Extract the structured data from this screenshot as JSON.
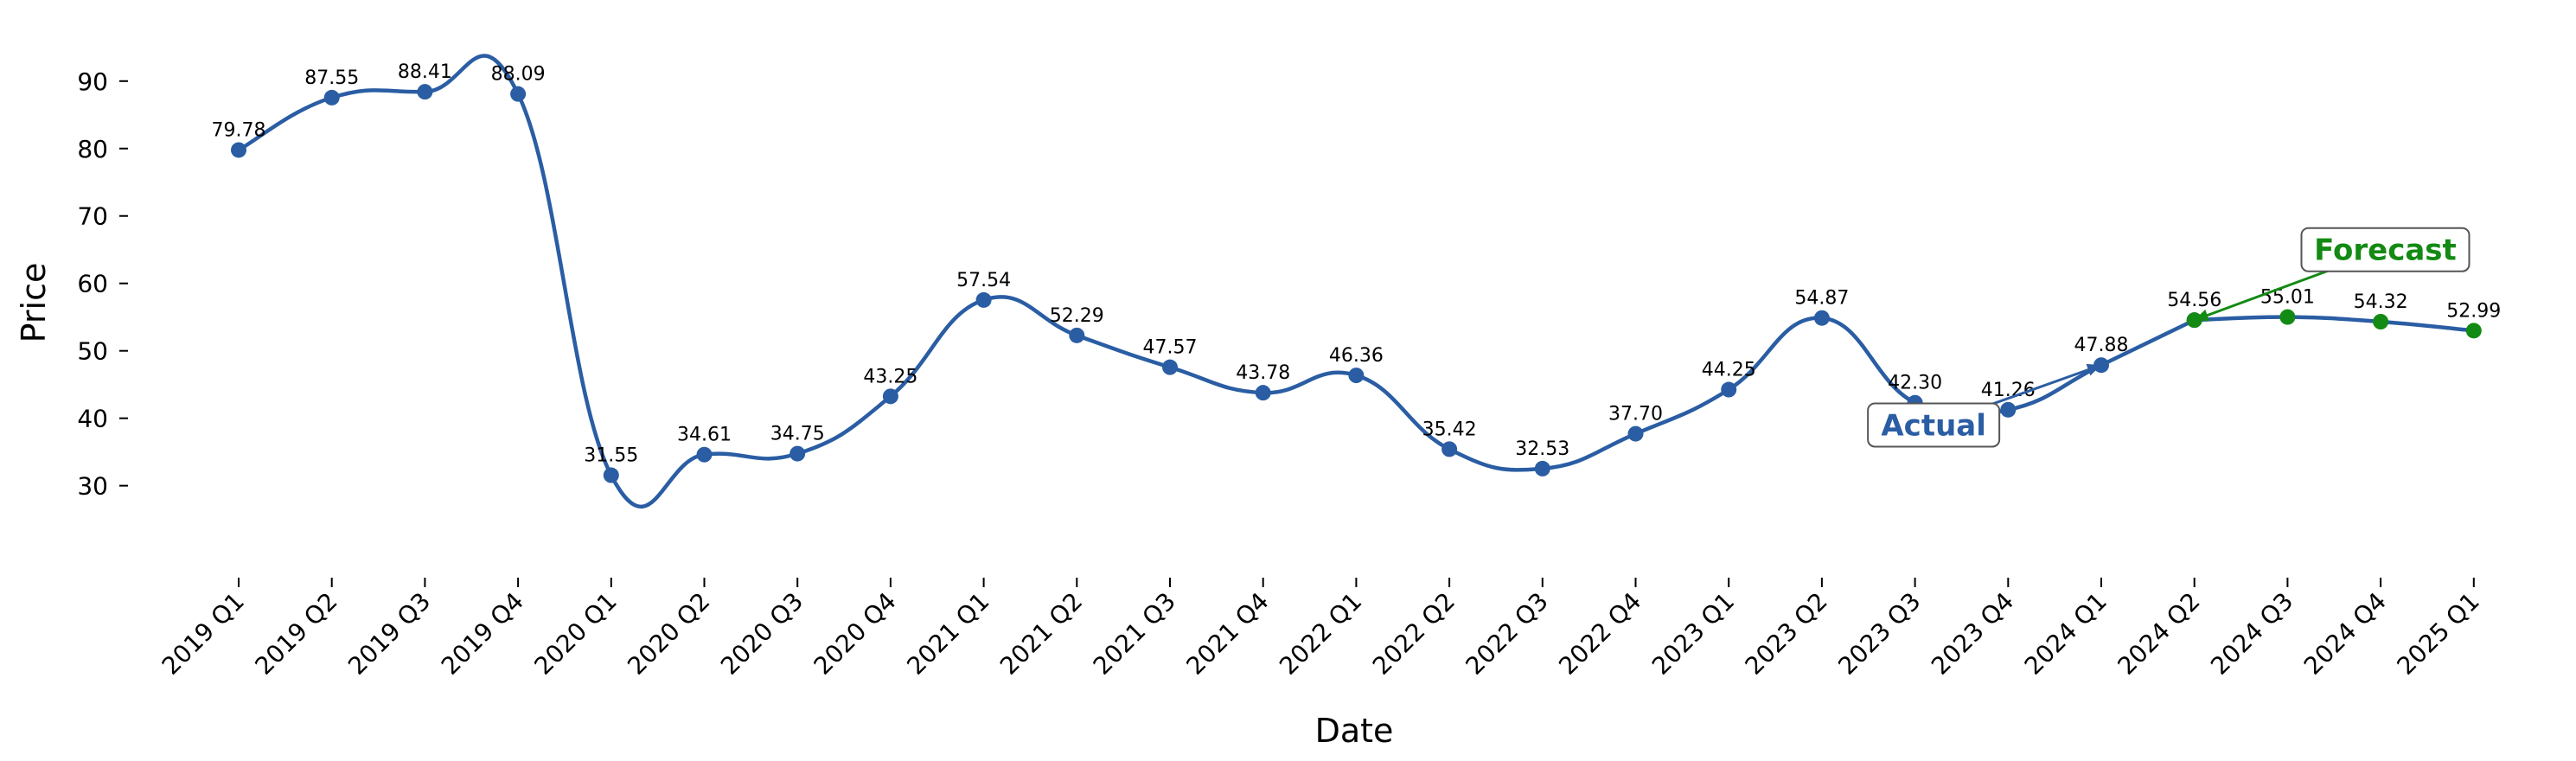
{
  "chart_data": {
    "type": "line",
    "xlabel": "Date",
    "ylabel": "Price",
    "ylim": [
      22.9,
      96.0
    ],
    "yticks": [
      30,
      40,
      50,
      60,
      70,
      80,
      90
    ],
    "grid": false,
    "categories": [
      "2019 Q1",
      "2019 Q2",
      "2019 Q3",
      "2019 Q4",
      "2020 Q1",
      "2020 Q2",
      "2020 Q3",
      "2020 Q4",
      "2021 Q1",
      "2021 Q2",
      "2021 Q3",
      "2021 Q4",
      "2022 Q1",
      "2022 Q2",
      "2022 Q3",
      "2022 Q4",
      "2023 Q1",
      "2023 Q2",
      "2023 Q3",
      "2023 Q4",
      "2024 Q1",
      "2024 Q2",
      "2024 Q3",
      "2024 Q4",
      "2025 Q1"
    ],
    "series": [
      {
        "values": [
          79.78,
          87.55,
          88.41,
          88.09,
          31.55,
          34.61,
          34.75,
          43.25,
          57.54,
          52.29,
          47.57,
          43.78,
          46.36,
          35.42,
          32.53,
          37.7,
          44.25,
          54.87,
          42.3,
          41.26,
          47.88,
          54.56,
          null,
          null,
          null
        ],
        "labels": [
          "79.78",
          "87.55",
          "88.41",
          "88.09",
          "31.55",
          "34.61",
          "34.75",
          "43.25",
          "57.54",
          "52.29",
          "47.57",
          "43.78",
          "46.36",
          "35.42",
          "32.53",
          "37.70",
          "44.25",
          "54.87",
          "42.30",
          "41.26",
          "47.88",
          "54.56",
          "",
          "",
          ""
        ],
        "color": "#2a5da3"
      },
      {
        "values": [
          null,
          null,
          null,
          null,
          null,
          null,
          null,
          null,
          null,
          null,
          null,
          null,
          null,
          null,
          null,
          null,
          null,
          null,
          null,
          null,
          null,
          54.56,
          55.01,
          54.32,
          52.99
        ],
        "labels": [
          "",
          "",
          "",
          "",
          "",
          "",
          "",
          "",
          "",
          "",
          "",
          "",
          "",
          "",
          "",
          "",
          "",
          "",
          "",
          "",
          "",
          "",
          "55.01",
          "54.32",
          "52.99"
        ],
        "color": "#138a13"
      }
    ],
    "annotations": [
      {
        "text": "Actual",
        "color": "#2a5da3",
        "box_category": 18.2,
        "box_value": 39.0,
        "arrow_category": 20.0,
        "arrow_value": 47.88
      },
      {
        "text": "Forecast",
        "color": "#138a13",
        "box_category": 23.05,
        "box_value": 65.0,
        "arrow_category": 21.0,
        "arrow_value": 54.56
      }
    ]
  }
}
